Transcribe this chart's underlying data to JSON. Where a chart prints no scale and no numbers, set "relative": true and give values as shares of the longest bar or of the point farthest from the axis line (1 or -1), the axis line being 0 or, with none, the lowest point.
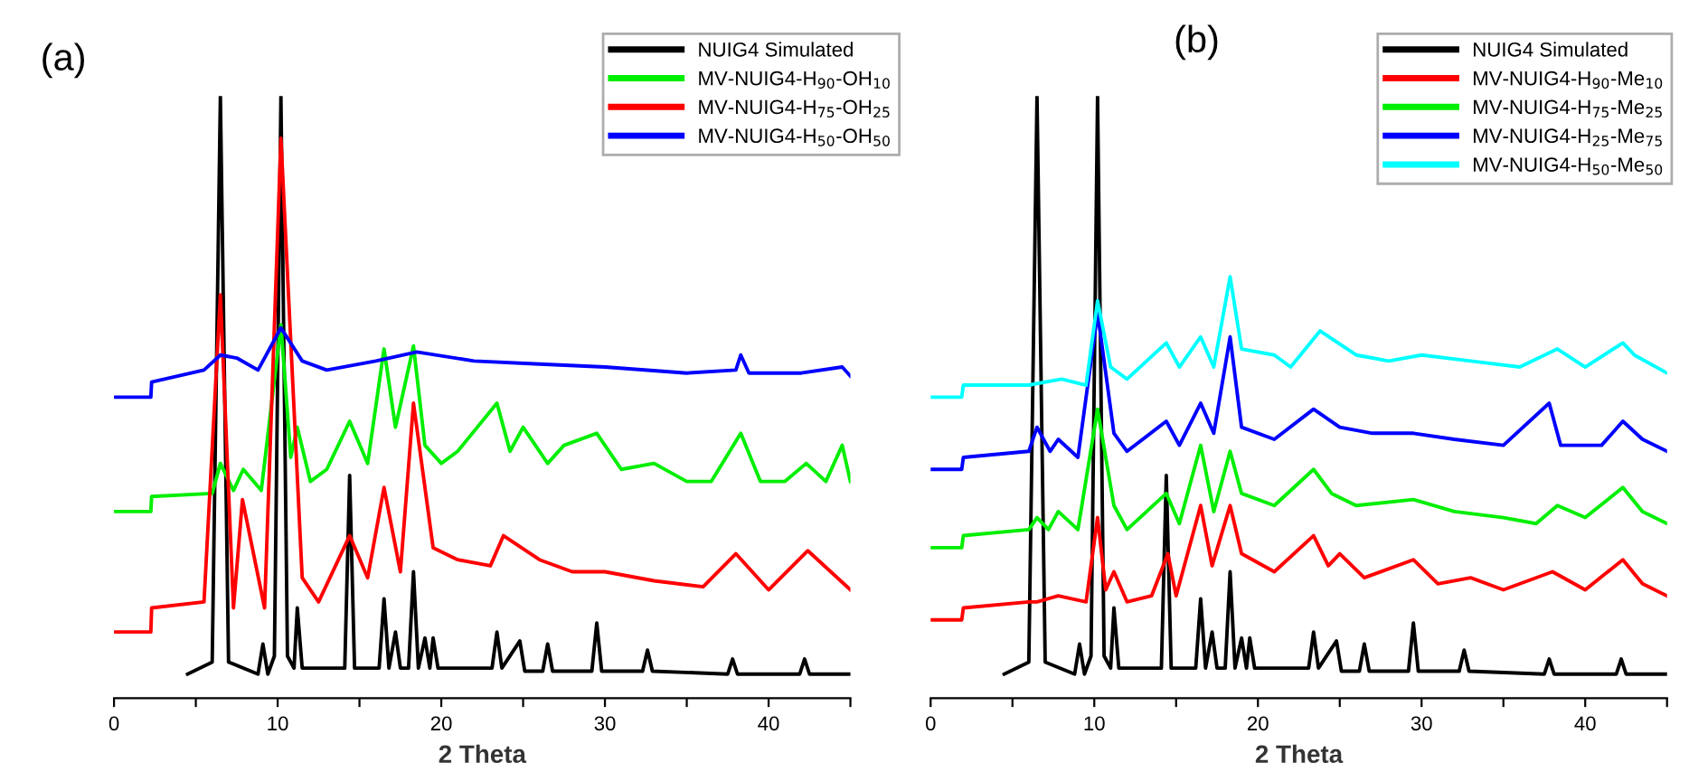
{
  "chart_data": [
    {
      "type": "line",
      "relative": true,
      "xlabel": "2 Theta",
      "annotations": [
        "(a)"
      ],
      "legend": "top right",
      "grid": false,
      "xlim": [
        0,
        45
      ],
      "xticks": [
        0,
        {
          "value": 5,
          "label": null
        },
        10,
        {
          "value": 15,
          "label": null
        },
        20,
        {
          "value": 25,
          "label": null
        },
        30,
        {
          "value": 35,
          "label": null
        },
        40,
        {
          "value": 45,
          "label": null
        }
      ],
      "series": [
        {
          "name": "NUIG4 Simulated",
          "color": "#000000",
          "x": [
            4.5,
            6.0,
            6.5,
            7.0,
            8.8,
            9.1,
            9.4,
            9.8,
            10.2,
            10.6,
            11.0,
            11.2,
            11.5,
            14.1,
            14.4,
            14.7,
            16.2,
            16.5,
            16.8,
            17.2,
            17.5,
            18.0,
            18.3,
            18.6,
            19.0,
            19.3,
            19.5,
            19.8,
            23.1,
            23.4,
            23.7,
            24.8,
            25.1,
            26.2,
            26.5,
            26.8,
            29.2,
            29.5,
            29.8,
            32.3,
            32.6,
            32.9,
            37.5,
            37.8,
            38.1,
            41.9,
            42.2,
            42.5,
            45
          ],
          "values": [
            0.04,
            0.06,
            1.0,
            0.06,
            0.04,
            0.09,
            0.04,
            0.07,
            1.0,
            0.07,
            0.05,
            0.15,
            0.05,
            0.05,
            0.37,
            0.05,
            0.05,
            0.165,
            0.05,
            0.11,
            0.05,
            0.05,
            0.21,
            0.05,
            0.1,
            0.05,
            0.1,
            0.05,
            0.05,
            0.11,
            0.05,
            0.095,
            0.045,
            0.045,
            0.09,
            0.045,
            0.045,
            0.125,
            0.045,
            0.045,
            0.08,
            0.045,
            0.04,
            0.065,
            0.04,
            0.04,
            0.065,
            0.04,
            0.04
          ]
        },
        {
          "name": "MV-NUIG4-H$_{90}$-OH$_{10}$",
          "color": "#00ee00",
          "x": [
            0,
            2.25,
            2.3,
            6.0,
            6.5,
            7.3,
            7.9,
            9.0,
            10.2,
            10.8,
            11.2,
            12.0,
            13.0,
            14.4,
            15.5,
            16.5,
            17.2,
            18.3,
            19.0,
            20.0,
            21.0,
            23.4,
            24.2,
            25.0,
            26.5,
            27.5,
            29.5,
            31.0,
            33.0,
            35.0,
            36.5,
            38.3,
            39.5,
            41.0,
            42.3,
            43.5,
            44.5,
            45.0
          ],
          "values": [
            0.31,
            0.31,
            0.335,
            0.34,
            0.39,
            0.345,
            0.38,
            0.345,
            0.62,
            0.4,
            0.45,
            0.36,
            0.38,
            0.46,
            0.39,
            0.58,
            0.45,
            0.585,
            0.42,
            0.39,
            0.41,
            0.49,
            0.41,
            0.45,
            0.39,
            0.42,
            0.44,
            0.38,
            0.39,
            0.36,
            0.36,
            0.44,
            0.36,
            0.36,
            0.39,
            0.36,
            0.42,
            0.36
          ]
        },
        {
          "name": "MV-NUIG4-H$_{75}$-OH$_{25}$",
          "color": "#ff0000",
          "x": [
            0,
            2.25,
            2.3,
            5.5,
            6.5,
            7.3,
            7.85,
            9.2,
            10.2,
            11.5,
            12.5,
            14.4,
            15.5,
            16.5,
            17.5,
            18.3,
            19.5,
            21.0,
            23.0,
            23.8,
            26.0,
            28.0,
            30.0,
            33.0,
            36.0,
            38.0,
            40.0,
            42.4,
            45.0
          ],
          "values": [
            0.11,
            0.11,
            0.15,
            0.16,
            0.67,
            0.15,
            0.33,
            0.15,
            0.93,
            0.2,
            0.16,
            0.27,
            0.2,
            0.35,
            0.21,
            0.49,
            0.25,
            0.23,
            0.22,
            0.27,
            0.23,
            0.21,
            0.21,
            0.195,
            0.185,
            0.24,
            0.18,
            0.245,
            0.18
          ]
        },
        {
          "name": "MV-NUIG4-H$_{50}$-OH$_{50}$",
          "color": "#0000ff",
          "x": [
            0,
            2.25,
            2.3,
            5.5,
            6.5,
            7.5,
            8.8,
            10.2,
            11.5,
            13.0,
            16.0,
            18.5,
            22.0,
            26.0,
            30.0,
            35.0,
            38.0,
            38.3,
            38.8,
            42.0,
            44.5,
            45.0
          ],
          "values": [
            0.5,
            0.5,
            0.525,
            0.545,
            0.57,
            0.565,
            0.545,
            0.615,
            0.56,
            0.545,
            0.56,
            0.575,
            0.56,
            0.555,
            0.55,
            0.54,
            0.545,
            0.57,
            0.54,
            0.54,
            0.55,
            0.535
          ]
        }
      ]
    },
    {
      "type": "line",
      "relative": true,
      "xlabel": "2 Theta",
      "annotations": [
        "(b)"
      ],
      "legend": "top right",
      "grid": false,
      "xlim": [
        0,
        45
      ],
      "xticks": [
        0,
        {
          "value": 5,
          "label": null
        },
        10,
        {
          "value": 15,
          "label": null
        },
        20,
        {
          "value": 25,
          "label": null
        },
        30,
        {
          "value": 35,
          "label": null
        },
        40,
        {
          "value": 45,
          "label": null
        }
      ],
      "series": [
        {
          "name": "NUIG4 Simulated",
          "color": "#000000",
          "x": [
            4.5,
            6.0,
            6.5,
            7.0,
            8.8,
            9.1,
            9.4,
            9.8,
            10.2,
            10.6,
            11.0,
            11.2,
            11.5,
            14.1,
            14.4,
            14.7,
            16.2,
            16.5,
            16.8,
            17.2,
            17.5,
            18.0,
            18.3,
            18.6,
            19.0,
            19.3,
            19.5,
            19.8,
            23.1,
            23.4,
            23.7,
            24.8,
            25.1,
            26.2,
            26.5,
            26.8,
            29.2,
            29.5,
            29.8,
            32.3,
            32.6,
            32.9,
            37.5,
            37.8,
            38.1,
            41.9,
            42.2,
            42.5,
            45
          ],
          "values": [
            0.04,
            0.06,
            1.0,
            0.06,
            0.04,
            0.09,
            0.04,
            0.07,
            1.0,
            0.07,
            0.05,
            0.15,
            0.05,
            0.05,
            0.37,
            0.05,
            0.05,
            0.165,
            0.05,
            0.11,
            0.05,
            0.05,
            0.21,
            0.05,
            0.1,
            0.05,
            0.1,
            0.05,
            0.05,
            0.11,
            0.05,
            0.095,
            0.045,
            0.045,
            0.09,
            0.045,
            0.045,
            0.125,
            0.045,
            0.045,
            0.08,
            0.045,
            0.04,
            0.065,
            0.04,
            0.04,
            0.065,
            0.04,
            0.04
          ]
        },
        {
          "name": "MV-NUIG4-H$_{90}$-Me$_{10}$",
          "color": "#ff0000",
          "x": [
            0,
            1.9,
            2.0,
            6.0,
            6.5,
            7.8,
            9.5,
            10.2,
            10.7,
            11.2,
            12.0,
            13.5,
            14.5,
            15.0,
            16.5,
            17.2,
            18.3,
            19.0,
            21.0,
            23.4,
            24.3,
            25.0,
            26.5,
            29.5,
            31.0,
            33.0,
            35.0,
            38.0,
            40.0,
            42.3,
            43.5,
            45.0
          ],
          "values": [
            0.13,
            0.13,
            0.15,
            0.16,
            0.16,
            0.17,
            0.16,
            0.3,
            0.18,
            0.21,
            0.16,
            0.17,
            0.24,
            0.17,
            0.32,
            0.22,
            0.32,
            0.24,
            0.21,
            0.27,
            0.22,
            0.24,
            0.2,
            0.23,
            0.19,
            0.2,
            0.18,
            0.21,
            0.18,
            0.23,
            0.19,
            0.17
          ]
        },
        {
          "name": "MV-NUIG4-H$_{75}$-Me$_{25}$",
          "color": "#00ee00",
          "x": [
            0,
            1.9,
            2.0,
            6.0,
            6.5,
            7.2,
            7.8,
            9.0,
            10.2,
            11.2,
            12.0,
            14.4,
            15.2,
            16.5,
            17.3,
            18.3,
            19.0,
            21.0,
            23.4,
            24.5,
            26.0,
            29.5,
            32.0,
            35.0,
            37.0,
            38.3,
            40.0,
            42.3,
            43.5,
            45.0
          ],
          "values": [
            0.25,
            0.25,
            0.27,
            0.28,
            0.3,
            0.28,
            0.31,
            0.28,
            0.48,
            0.32,
            0.28,
            0.34,
            0.29,
            0.42,
            0.31,
            0.41,
            0.34,
            0.32,
            0.38,
            0.34,
            0.32,
            0.33,
            0.31,
            0.3,
            0.29,
            0.32,
            0.3,
            0.35,
            0.31,
            0.29
          ]
        },
        {
          "name": "MV-NUIG4-H$_{25}$-Me$_{75}$",
          "color": "#0000ff",
          "x": [
            0,
            1.9,
            2.0,
            6.0,
            6.5,
            7.3,
            7.8,
            9.0,
            10.2,
            11.2,
            12.0,
            14.4,
            15.2,
            16.5,
            17.3,
            18.3,
            19.0,
            21.0,
            23.4,
            25.0,
            27.0,
            29.5,
            32.0,
            35.0,
            37.8,
            38.5,
            41.0,
            42.3,
            43.5,
            45.0
          ],
          "values": [
            0.38,
            0.38,
            0.4,
            0.41,
            0.45,
            0.41,
            0.43,
            0.4,
            0.64,
            0.44,
            0.41,
            0.46,
            0.42,
            0.49,
            0.44,
            0.6,
            0.45,
            0.43,
            0.48,
            0.45,
            0.44,
            0.44,
            0.43,
            0.42,
            0.49,
            0.42,
            0.42,
            0.46,
            0.43,
            0.41
          ]
        },
        {
          "name": "MV-NUIG4-H$_{50}$-Me$_{50}$",
          "color": "#00ffff",
          "x": [
            0,
            1.9,
            2.0,
            6.0,
            8.0,
            9.5,
            10.2,
            11.0,
            12.0,
            14.4,
            15.2,
            16.5,
            17.3,
            18.3,
            19.0,
            21.0,
            22.0,
            23.8,
            26.0,
            28.0,
            30.0,
            33.0,
            36.0,
            38.3,
            40.0,
            42.3,
            43.0,
            45.0
          ],
          "values": [
            0.5,
            0.5,
            0.52,
            0.52,
            0.53,
            0.52,
            0.66,
            0.55,
            0.53,
            0.59,
            0.55,
            0.6,
            0.55,
            0.7,
            0.58,
            0.57,
            0.55,
            0.61,
            0.57,
            0.56,
            0.57,
            0.56,
            0.55,
            0.58,
            0.55,
            0.59,
            0.57,
            0.54
          ]
        }
      ]
    }
  ]
}
